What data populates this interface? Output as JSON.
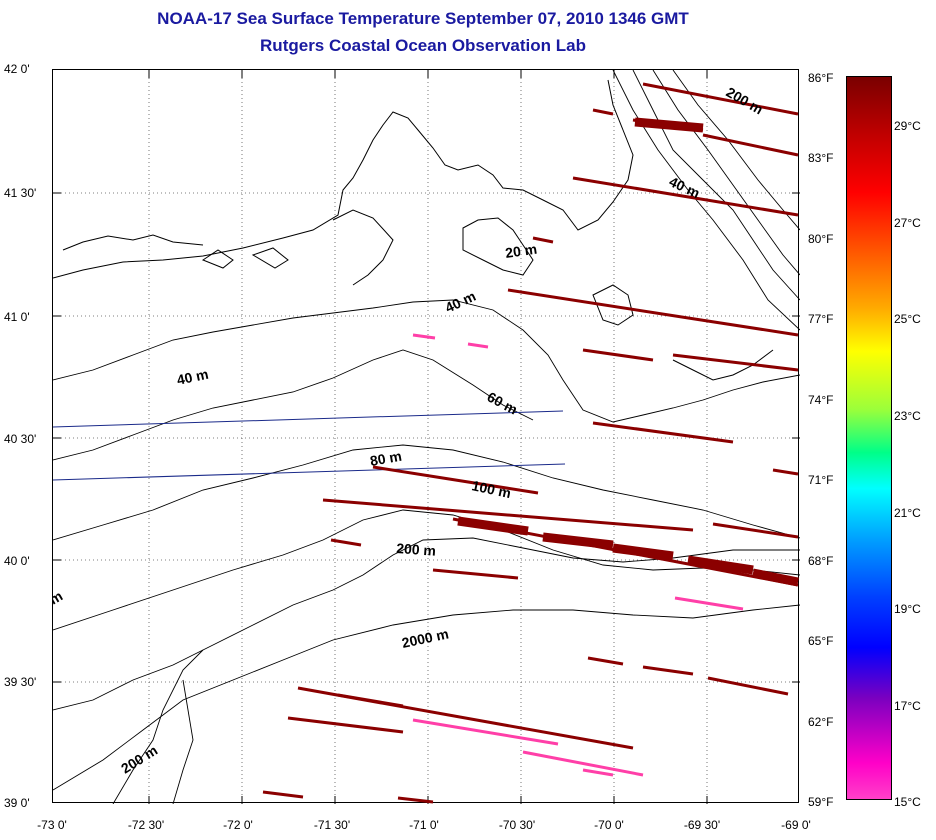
{
  "title": {
    "line1": "NOAA-17 Sea Surface Temperature September 07, 2010 1346 GMT",
    "line2": "Rutgers Coastal Ocean Observation Lab"
  },
  "lat_ticks": [
    "42 0'",
    "41 30'",
    "41 0'",
    "40 30'",
    "40 0'",
    "39 30'",
    "39 0'"
  ],
  "lon_ticks": [
    "-73 0'",
    "-72 30'",
    "-72 0'",
    "-71 30'",
    "-71 0'",
    "-70 30'",
    "-70 0'",
    "-69 30'",
    "-69 0'"
  ],
  "colorbar": {
    "fahrenheit": [
      "86°F",
      "83°F",
      "80°F",
      "77°F",
      "74°F",
      "71°F",
      "68°F",
      "65°F",
      "62°F",
      "59°F"
    ],
    "celsius": [
      "29°C",
      "27°C",
      "25°C",
      "23°C",
      "21°C",
      "19°C",
      "17°C",
      "15°C"
    ]
  },
  "depth_labels": [
    "200 m",
    "40 m",
    "20 m",
    "40 m",
    "40 m",
    "60 m",
    "80 m",
    "100 m",
    "200 m",
    "2000 m",
    "200 m",
    "m"
  ],
  "colors": {
    "title": "#1a1aa0",
    "warm": "#8b0000",
    "cool": "#ff3fa8",
    "track": "#1a2a8a"
  }
}
